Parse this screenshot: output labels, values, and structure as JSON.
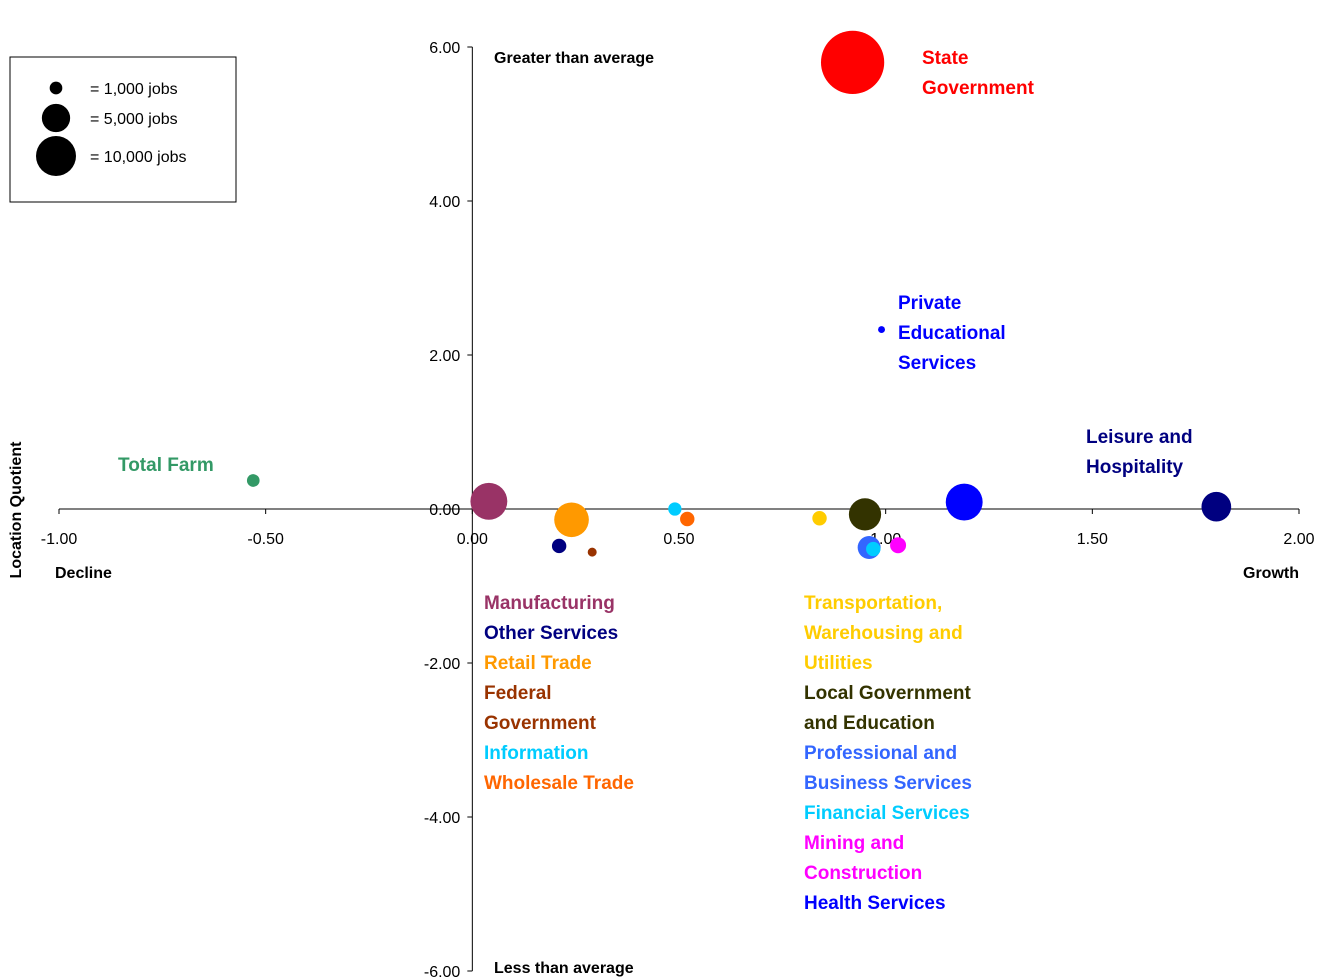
{
  "chart_data": {
    "type": "bubble",
    "xlabel_left": "Decline",
    "xlabel_right": "Growth",
    "ylabel": "Location Quotient",
    "top_label": "Greater than average",
    "bottom_label": "Less than average",
    "xlim": [
      -1.0,
      2.0
    ],
    "ylim": [
      -6.0,
      6.0
    ],
    "x_ticks": [
      "-1.00",
      "-0.50",
      "0.00",
      "0.50",
      "1.00",
      "1.50",
      "2.00"
    ],
    "x_tick_values": [
      -1.0,
      -0.5,
      0.0,
      0.5,
      1.0,
      1.5,
      2.0
    ],
    "y_ticks": [
      "6.00",
      "4.00",
      "2.00",
      "0.00",
      "-2.00",
      "-4.00",
      "-6.00"
    ],
    "y_tick_values": [
      6.0,
      4.0,
      2.0,
      0.0,
      -2.0,
      -4.0,
      -6.0
    ],
    "legend": [
      {
        "label": "= 1,000 jobs",
        "jobs": 1000
      },
      {
        "label": "= 5,000 jobs",
        "jobs": 5000
      },
      {
        "label": "= 10,000 jobs",
        "jobs": 10000
      }
    ],
    "series": [
      {
        "name": "State Government",
        "x": 0.92,
        "y": 5.8,
        "jobs": 25000,
        "color": "#ff0000"
      },
      {
        "name": "Private Educational Services",
        "x": 0.99,
        "y": 2.33,
        "jobs": 300,
        "color": "#0000ff"
      },
      {
        "name": "Leisure and Hospitality",
        "x": 1.8,
        "y": 0.03,
        "jobs": 5500,
        "color": "#000080"
      },
      {
        "name": "Total Farm",
        "x": -0.53,
        "y": 0.37,
        "jobs": 1000,
        "color": "#339966"
      },
      {
        "name": "Manufacturing",
        "x": 0.04,
        "y": 0.1,
        "jobs": 8500,
        "color": "#993366"
      },
      {
        "name": "Other Services",
        "x": 0.21,
        "y": -0.48,
        "jobs": 1300,
        "color": "#000080"
      },
      {
        "name": "Retail Trade",
        "x": 0.24,
        "y": -0.14,
        "jobs": 7500,
        "color": "#ff9900"
      },
      {
        "name": "Federal Government",
        "x": 0.29,
        "y": -0.56,
        "jobs": 500,
        "color": "#993300"
      },
      {
        "name": "Information",
        "x": 0.49,
        "y": 0.0,
        "jobs": 1100,
        "color": "#00ccff"
      },
      {
        "name": "Wholesale Trade",
        "x": 0.52,
        "y": -0.13,
        "jobs": 1300,
        "color": "#ff6600"
      },
      {
        "name": "Transportation, Warehousing and Utilities",
        "x": 0.84,
        "y": -0.12,
        "jobs": 1300,
        "color": "#ffcc00"
      },
      {
        "name": "Local Government and Education",
        "x": 0.95,
        "y": -0.07,
        "jobs": 6500,
        "color": "#333300"
      },
      {
        "name": "Health Services",
        "x": 1.19,
        "y": 0.09,
        "jobs": 8500,
        "color": "#0000ff"
      },
      {
        "name": "Professional and Business Services",
        "x": 0.96,
        "y": -0.5,
        "jobs": 3300,
        "color": "#3366ff"
      },
      {
        "name": "Financial Services",
        "x": 0.97,
        "y": -0.52,
        "jobs": 1300,
        "color": "#00ccff"
      },
      {
        "name": "Mining and Construction",
        "x": 1.03,
        "y": -0.47,
        "jobs": 1600,
        "color": "#ff00ff"
      }
    ],
    "labels": [
      {
        "lines": [
          "State",
          "Government"
        ],
        "color": "#ff0000"
      },
      {
        "lines": [
          "Private",
          "Educational",
          "Services"
        ],
        "color": "#0000ff"
      },
      {
        "lines": [
          "Leisure and",
          "Hospitality"
        ],
        "color": "#000080"
      },
      {
        "lines": [
          "Total Farm"
        ],
        "color": "#339966"
      },
      {
        "lines": [
          "Manufacturing"
        ],
        "color": "#993366"
      },
      {
        "lines": [
          "Other Services"
        ],
        "color": "#000080"
      },
      {
        "lines": [
          "Retail Trade"
        ],
        "color": "#ff9900"
      },
      {
        "lines": [
          "Federal",
          "Government"
        ],
        "color": "#993300"
      },
      {
        "lines": [
          "Information"
        ],
        "color": "#00ccff"
      },
      {
        "lines": [
          "Wholesale Trade"
        ],
        "color": "#ff6600"
      },
      {
        "lines": [
          "Transportation,",
          "Warehousing and",
          "Utilities"
        ],
        "color": "#ffcc00"
      },
      {
        "lines": [
          "Local Government",
          "and Education"
        ],
        "color": "#333300"
      },
      {
        "lines": [
          "Professional and",
          "Business Services"
        ],
        "color": "#3366ff"
      },
      {
        "lines": [
          "Financial Services"
        ],
        "color": "#00ccff"
      },
      {
        "lines": [
          "Mining and",
          "Construction"
        ],
        "color": "#ff00ff"
      },
      {
        "lines": [
          "Health Services"
        ],
        "color": "#0000ff"
      }
    ]
  }
}
